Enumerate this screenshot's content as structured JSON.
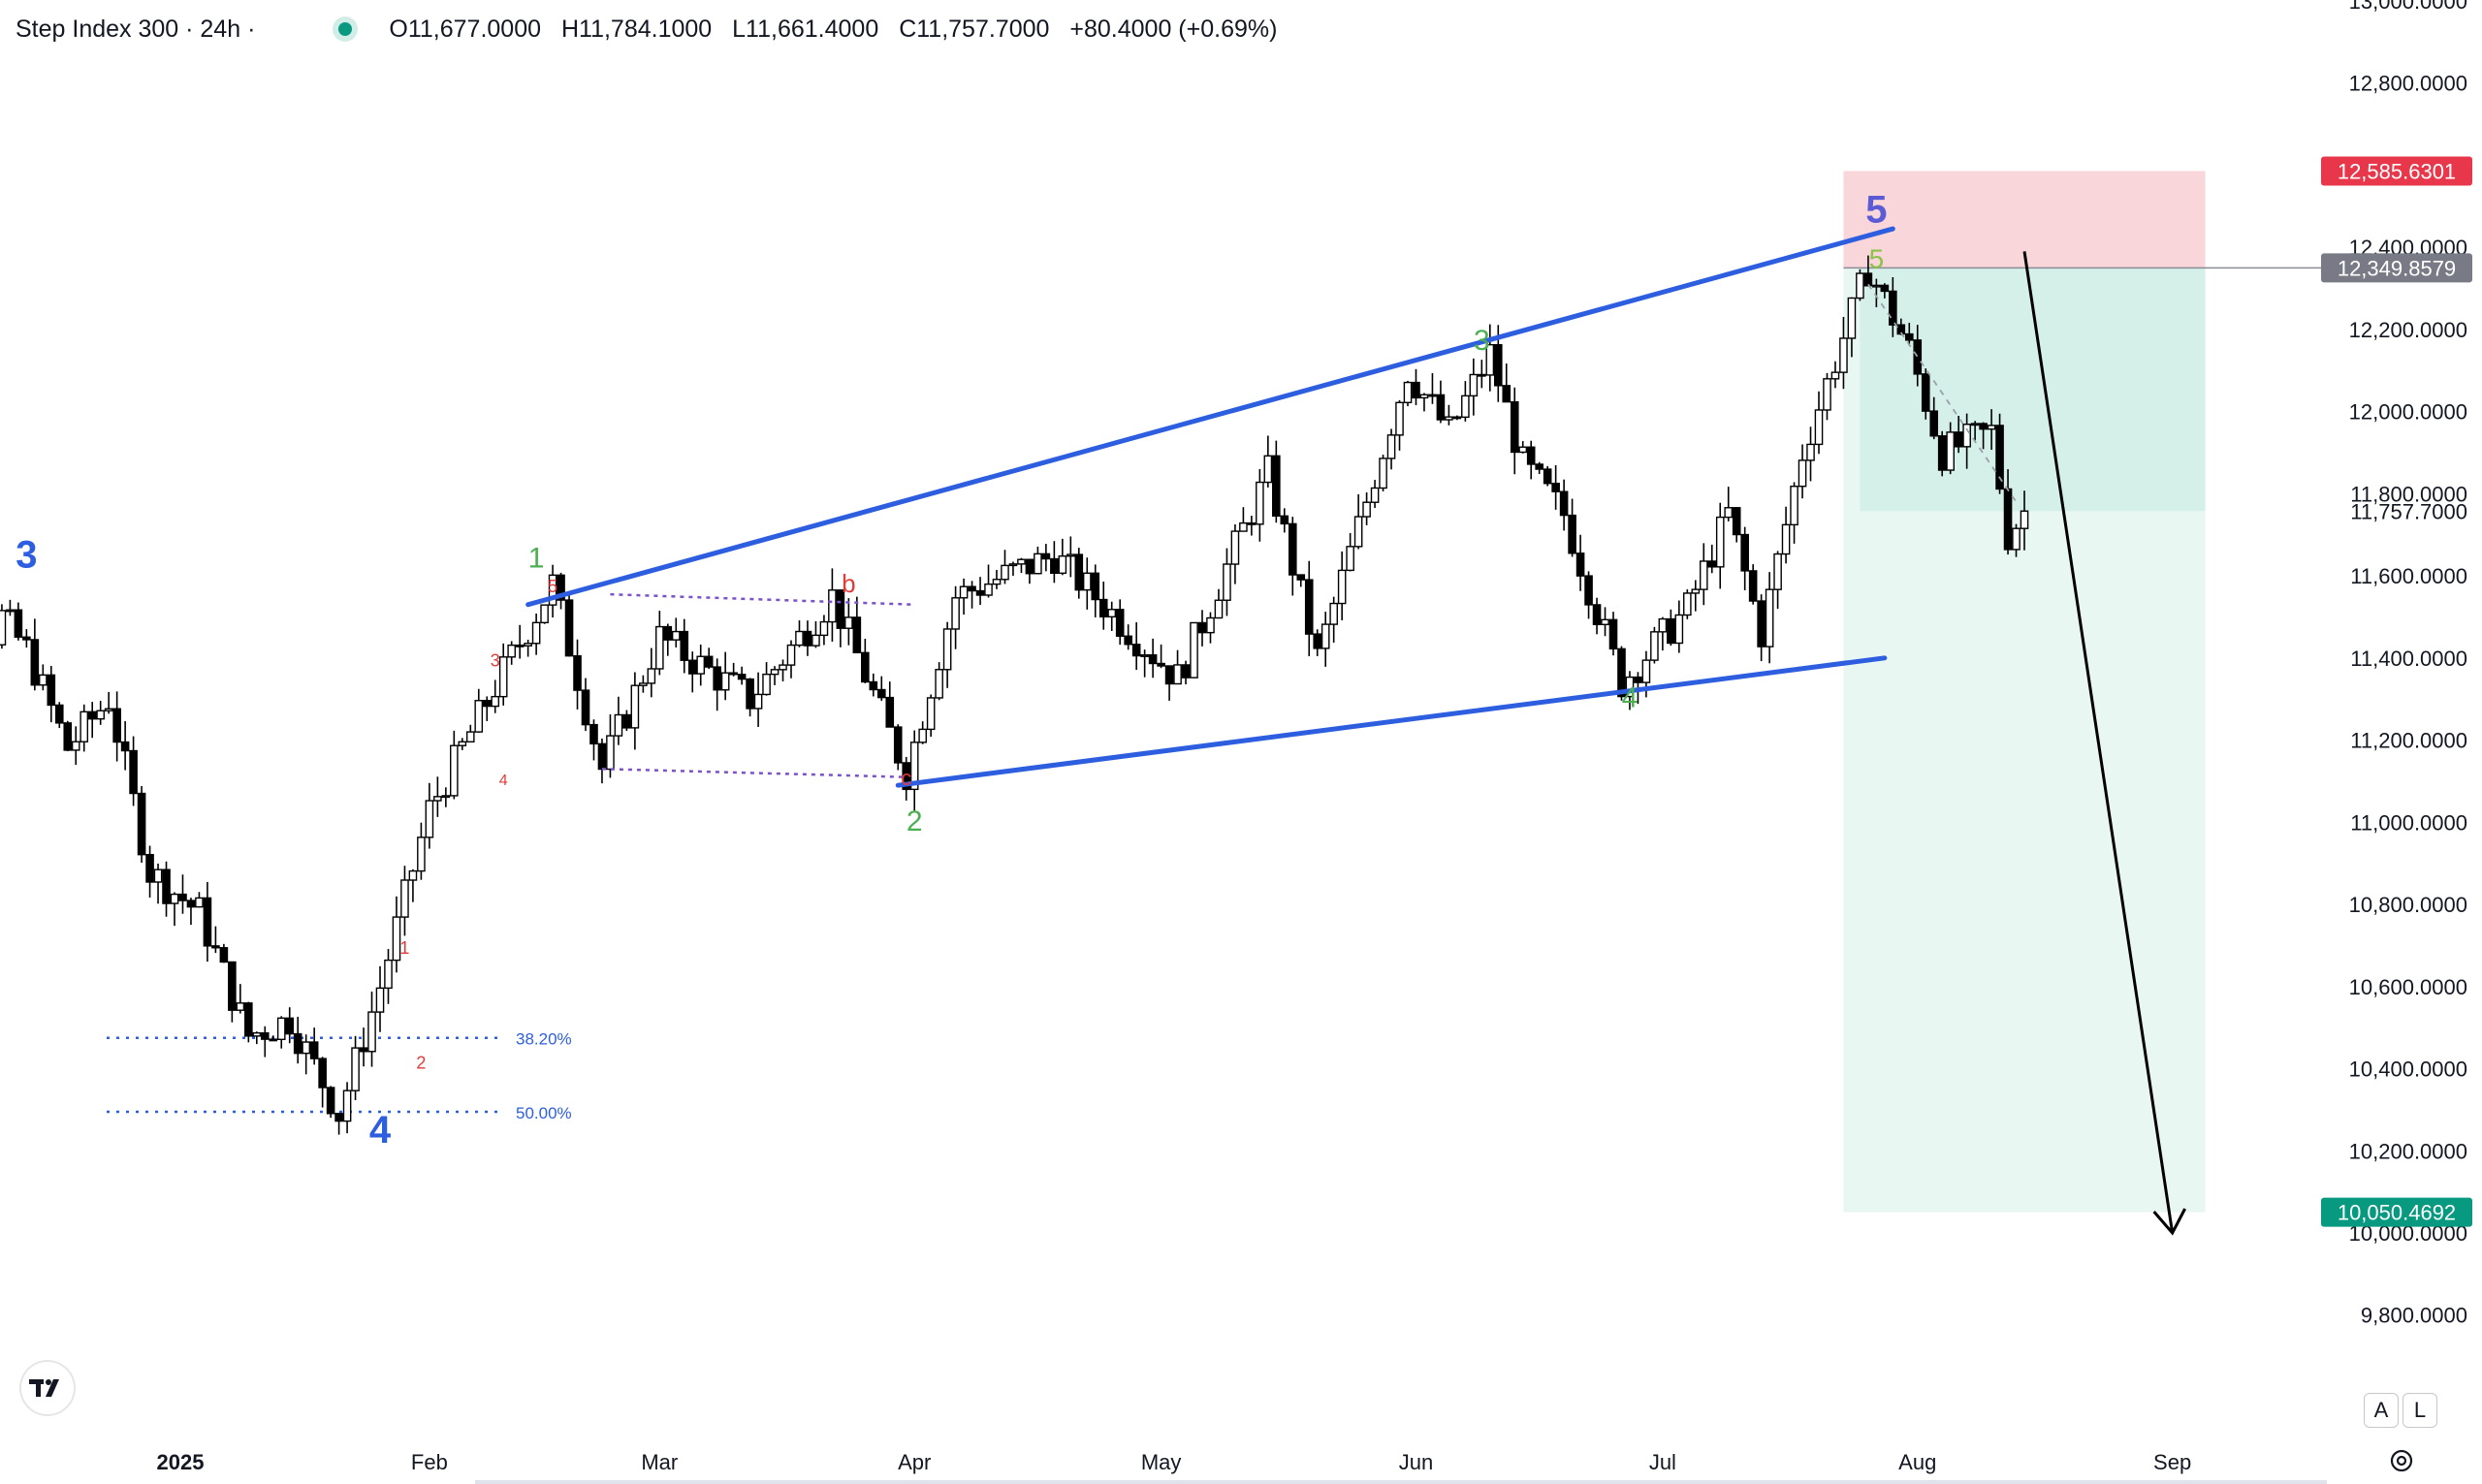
{
  "header": {
    "symbol": "Step Index 300 · 24h ·",
    "open": "O11,677.0000",
    "high": "H11,784.1000",
    "low": "L11,661.4000",
    "close": "C11,757.7000",
    "change": "+80.4000 (+0.69%)"
  },
  "colors": {
    "up": "#ffffff",
    "down": "#000000",
    "trendline": "#2e5ee0",
    "stop_zone": "#f9d6da",
    "profit_zone": "#d5efe9",
    "profit_zone_light": "#e9f7f3",
    "stop_tag": "#e8374a",
    "entry_tag": "#787b86",
    "target_tag": "#089981",
    "wave_blue": "#2e5ee0",
    "wave_green": "#4caf50",
    "wave_red": "#e23b3b",
    "wave_purple": "#5b5bd6"
  },
  "chart_data": {
    "type": "candlestick",
    "y_axis": {
      "ticks": [
        "13,000.0000",
        "12,800.0000",
        "12,400.0000",
        "12,200.0000",
        "12,000.0000",
        "11,800.0000",
        "11,600.0000",
        "11,400.0000",
        "11,200.0000",
        "11,000.0000",
        "10,800.0000",
        "10,600.0000",
        "10,400.0000",
        "10,200.0000",
        "10,000.0000",
        "9,800.0000"
      ],
      "range": [
        9700,
        13000
      ]
    },
    "x_axis": {
      "ticks": [
        "2025",
        "Feb",
        "Mar",
        "Apr",
        "May",
        "Jun",
        "Jul",
        "Aug",
        "Sep"
      ]
    },
    "price_tags": {
      "stop": "12,585.6301",
      "entry": "12,349.8579",
      "last": "11,757.7000",
      "target": "10,050.4692"
    },
    "fib_levels": [
      {
        "label": "38.20%",
        "price": 10475
      },
      {
        "label": "50.00%",
        "price": 10295
      }
    ],
    "wave_labels": {
      "major": [
        "3",
        "4",
        "5"
      ],
      "intermediate": [
        "1",
        "2",
        "3",
        "4",
        "5"
      ],
      "minor": [
        "1",
        "2",
        "3",
        "4",
        "5"
      ],
      "corrective": [
        "b",
        "c"
      ]
    },
    "anchor_closes": [
      {
        "date": "2024-12-01",
        "close": 10950
      },
      {
        "date": "2024-12-06",
        "close": 11300
      },
      {
        "date": "2024-12-11",
        "close": 11500
      },
      {
        "date": "2024-12-14",
        "close": 11420
      },
      {
        "date": "2024-12-19",
        "close": 11180
      },
      {
        "date": "2024-12-24",
        "close": 11300
      },
      {
        "date": "2024-12-29",
        "close": 10880
      },
      {
        "date": "2025-01-04",
        "close": 10780
      },
      {
        "date": "2025-01-10",
        "close": 10480
      },
      {
        "date": "2025-01-15",
        "close": 10520
      },
      {
        "date": "2025-01-21",
        "close": 10290
      },
      {
        "date": "2025-01-26",
        "close": 10600
      },
      {
        "date": "2025-02-01",
        "close": 11030
      },
      {
        "date": "2025-02-09",
        "close": 11330
      },
      {
        "date": "2025-02-16",
        "close": 11580
      },
      {
        "date": "2025-02-22",
        "close": 11130
      },
      {
        "date": "2025-03-01",
        "close": 11450
      },
      {
        "date": "2025-03-12",
        "close": 11300
      },
      {
        "date": "2025-03-22",
        "close": 11550
      },
      {
        "date": "2025-03-31",
        "close": 11120
      },
      {
        "date": "2025-04-06",
        "close": 11550
      },
      {
        "date": "2025-04-18",
        "close": 11650
      },
      {
        "date": "2025-05-03",
        "close": 11350
      },
      {
        "date": "2025-05-14",
        "close": 11850
      },
      {
        "date": "2025-05-20",
        "close": 11400
      },
      {
        "date": "2025-05-31",
        "close": 12100
      },
      {
        "date": "2025-06-05",
        "close": 11950
      },
      {
        "date": "2025-06-10",
        "close": 12140
      },
      {
        "date": "2025-06-14",
        "close": 11870
      },
      {
        "date": "2025-06-19",
        "close": 11750
      },
      {
        "date": "2025-06-26",
        "close": 11340
      },
      {
        "date": "2025-07-04",
        "close": 11520
      },
      {
        "date": "2025-07-09",
        "close": 11750
      },
      {
        "date": "2025-07-13",
        "close": 11460
      },
      {
        "date": "2025-07-18",
        "close": 11900
      },
      {
        "date": "2025-07-26",
        "close": 12350
      },
      {
        "date": "2025-07-31",
        "close": 12150
      },
      {
        "date": "2025-08-04",
        "close": 11900
      },
      {
        "date": "2025-08-10",
        "close": 11950
      },
      {
        "date": "2025-08-12",
        "close": 11700
      },
      {
        "date": "2025-08-14",
        "close": 11757.7
      }
    ],
    "wedge_upper": [
      {
        "date": "2025-02-13",
        "price": 11530
      },
      {
        "date": "2025-07-29",
        "price": 12445
      }
    ],
    "wedge_lower": [
      {
        "date": "2025-03-30",
        "price": 11090
      },
      {
        "date": "2025-07-28",
        "price": 11400
      }
    ],
    "projection": [
      {
        "date": "2025-08-14",
        "price": 12390
      },
      {
        "date": "2025-09-01",
        "price": 10000
      }
    ],
    "buttons": [
      "A",
      "L"
    ]
  }
}
